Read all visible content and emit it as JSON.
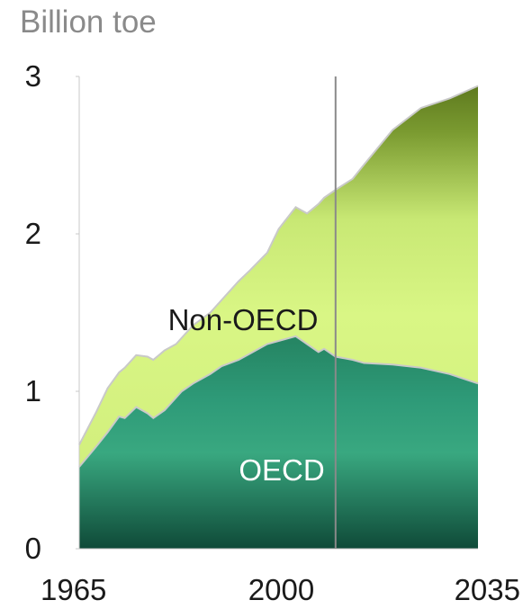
{
  "chart_data": {
    "type": "area",
    "stacked": true,
    "title": "",
    "ylabel": "Billion toe",
    "xlabel": "",
    "xlim": [
      1965,
      2035
    ],
    "ylim": [
      0,
      3
    ],
    "yticks": [
      0,
      1,
      2,
      3
    ],
    "ytick_labels": [
      "0",
      "1",
      "2",
      "3"
    ],
    "xticks": [
      1965,
      2000,
      2035
    ],
    "xtick_labels": [
      "1965",
      "2000",
      "2035"
    ],
    "projection_marker_year": 2010,
    "grid": false,
    "legend": "none",
    "x": [
      1965,
      1968,
      1970,
      1972,
      1973,
      1975,
      1977,
      1978,
      1980,
      1982,
      1983,
      1985,
      1988,
      1990,
      1993,
      1995,
      1998,
      2000,
      2003,
      2005,
      2007,
      2008,
      2010,
      2013,
      2015,
      2020,
      2025,
      2030,
      2035
    ],
    "series": [
      {
        "name": "OECD",
        "color": "#2e9a78",
        "values": [
          0.52,
          0.65,
          0.74,
          0.84,
          0.83,
          0.9,
          0.86,
          0.83,
          0.88,
          0.96,
          1.0,
          1.05,
          1.11,
          1.16,
          1.2,
          1.24,
          1.3,
          1.32,
          1.35,
          1.3,
          1.25,
          1.27,
          1.22,
          1.2,
          1.18,
          1.17,
          1.15,
          1.11,
          1.05
        ]
      },
      {
        "name": "Non-OECD",
        "color": "#d5f07e",
        "values": [
          0.14,
          0.22,
          0.28,
          0.28,
          0.32,
          0.33,
          0.36,
          0.37,
          0.38,
          0.34,
          0.34,
          0.37,
          0.39,
          0.42,
          0.5,
          0.53,
          0.58,
          0.71,
          0.82,
          0.83,
          0.94,
          0.96,
          1.06,
          1.15,
          1.26,
          1.49,
          1.65,
          1.75,
          1.89
        ]
      }
    ],
    "annotations": [
      {
        "text": "Non-OECD",
        "color": "#1a1a1a"
      },
      {
        "text": "OECD",
        "color": "#ffffff"
      }
    ]
  }
}
